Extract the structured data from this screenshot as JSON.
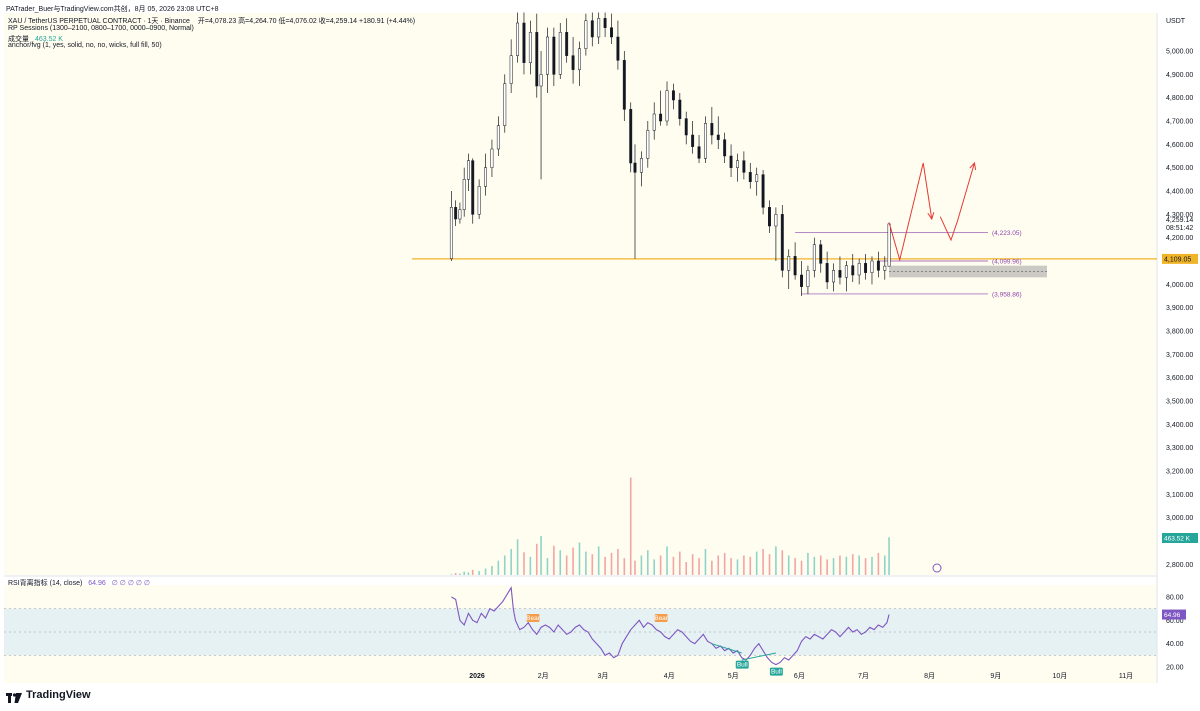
{
  "header": {
    "author_line": "PATrader_Buer与TradingView.com共创，8月 05, 2026 23:08 UTC+8",
    "symbol_line": "XAU / TetherUS PERPETUAL CONTRACT · 1天 · Binance",
    "ohlc": "开=4,078.23 高=4,264.70 低=4,076.02 收=4,259.14 +180.91 (+4.44%)",
    "indicator_sessions": "RP Sessions (1300–2100, 0800–1700, 0000–0900, Normal)",
    "volume_label": "成交量",
    "volume_value": "463.52 K",
    "indicator_fvg": "anchor/fvg (1, yes, solid, no, no, wicks, full fill, 50)",
    "rsi_label": "RSI背离指标 (14, close)",
    "rsi_value": "64.96",
    "rsi_extra": "∅ ∅ ∅ ∅ ∅"
  },
  "brand": {
    "logo_text": "TradingView"
  },
  "colors": {
    "up": "#26a69a",
    "down": "#ef5350",
    "support": "#f0b429",
    "rsi_line": "#7e57c2",
    "projection": "#e53935",
    "level_line": "#8e44ad",
    "chart_bg": "#fffdf0"
  },
  "chart_data": {
    "type": "candlestick",
    "currency": "USDT",
    "price_axis_ticks": [
      "5,000.00",
      "4,900.00",
      "4,800.00",
      "4,700.00",
      "4,600.00",
      "4,500.00",
      "4,400.00",
      "4,300.00",
      "4,200.00",
      "4,000.00",
      "3,900.00",
      "3,800.00",
      "3,700.00",
      "3,600.00",
      "3,500.00",
      "3,400.00",
      "3,300.00",
      "3,200.00",
      "3,100.00",
      "3,000.00",
      "2,800.00"
    ],
    "price_axis_ticks_values": [
      5000,
      4900,
      4800,
      4700,
      4600,
      4500,
      4400,
      4300,
      4200,
      4000,
      3900,
      3800,
      3700,
      3600,
      3500,
      3400,
      3300,
      3200,
      3100,
      3000,
      2800
    ],
    "ylim": [
      2750,
      5165
    ],
    "time_axis": [
      "2026",
      "2月",
      "3月",
      "4月",
      "5月",
      "6月",
      "7月",
      "8月",
      "9月",
      "10月",
      "11月"
    ],
    "time_axis_day": [
      0,
      31,
      59,
      90,
      120,
      151,
      181,
      212,
      243,
      273,
      304
    ],
    "last_price": {
      "value": 4259.14,
      "label": "4,259.14",
      "countdown": "08:51:42"
    },
    "support_level": {
      "value": 4109.05,
      "label": "4,109.05"
    },
    "levels": [
      {
        "value": 4223.05,
        "label": "(4,223.05)"
      },
      {
        "value": 4099.96,
        "label": "(4,099.96)"
      },
      {
        "value": 3958.86,
        "label": "(3,958.86)"
      }
    ],
    "candles_estimated": [
      {
        "day": -12,
        "o": 4110,
        "h": 4400,
        "l": 4100,
        "c": 4330
      },
      {
        "day": -10,
        "o": 4330,
        "h": 4360,
        "l": 4250,
        "c": 4280
      },
      {
        "day": -8,
        "o": 4280,
        "h": 4350,
        "l": 4260,
        "c": 4320
      },
      {
        "day": -6,
        "o": 4320,
        "h": 4500,
        "l": 4290,
        "c": 4450
      },
      {
        "day": -4,
        "o": 4450,
        "h": 4560,
        "l": 4400,
        "c": 4530
      },
      {
        "day": -2,
        "o": 4530,
        "h": 4540,
        "l": 4260,
        "c": 4300
      },
      {
        "day": 1,
        "o": 4300,
        "h": 4450,
        "l": 4280,
        "c": 4420
      },
      {
        "day": 4,
        "o": 4420,
        "h": 4560,
        "l": 4380,
        "c": 4500
      },
      {
        "day": 7,
        "o": 4500,
        "h": 4620,
        "l": 4460,
        "c": 4580
      },
      {
        "day": 10,
        "o": 4580,
        "h": 4720,
        "l": 4550,
        "c": 4680
      },
      {
        "day": 13,
        "o": 4680,
        "h": 4900,
        "l": 4650,
        "c": 4860
      },
      {
        "day": 16,
        "o": 4860,
        "h": 5050,
        "l": 4820,
        "c": 4980
      },
      {
        "day": 19,
        "o": 4980,
        "h": 5165,
        "l": 4950,
        "c": 5120
      },
      {
        "day": 22,
        "o": 5120,
        "h": 5165,
        "l": 4900,
        "c": 4950
      },
      {
        "day": 25,
        "o": 4950,
        "h": 5130,
        "l": 4900,
        "c": 5080
      },
      {
        "day": 28,
        "o": 5080,
        "h": 5160,
        "l": 4800,
        "c": 4850
      },
      {
        "day": 30,
        "o": 4850,
        "h": 5000,
        "l": 4450,
        "c": 4900
      },
      {
        "day": 33,
        "o": 4900,
        "h": 5100,
        "l": 4820,
        "c": 5060
      },
      {
        "day": 36,
        "o": 5060,
        "h": 5100,
        "l": 4850,
        "c": 4900
      },
      {
        "day": 39,
        "o": 4900,
        "h": 5120,
        "l": 4880,
        "c": 5080
      },
      {
        "day": 42,
        "o": 5080,
        "h": 5140,
        "l": 4950,
        "c": 4980
      },
      {
        "day": 45,
        "o": 4980,
        "h": 5060,
        "l": 4860,
        "c": 4920
      },
      {
        "day": 48,
        "o": 4920,
        "h": 5040,
        "l": 4850,
        "c": 5010
      },
      {
        "day": 51,
        "o": 5010,
        "h": 5160,
        "l": 4980,
        "c": 5130
      },
      {
        "day": 54,
        "o": 5130,
        "h": 5165,
        "l": 5020,
        "c": 5060
      },
      {
        "day": 57,
        "o": 5060,
        "h": 5165,
        "l": 5030,
        "c": 5140
      },
      {
        "day": 60,
        "o": 5140,
        "h": 5165,
        "l": 5060,
        "c": 5100
      },
      {
        "day": 63,
        "o": 5100,
        "h": 5160,
        "l": 5030,
        "c": 5060
      },
      {
        "day": 66,
        "o": 5060,
        "h": 5130,
        "l": 4920,
        "c": 4960
      },
      {
        "day": 69,
        "o": 4960,
        "h": 5000,
        "l": 4700,
        "c": 4750
      },
      {
        "day": 72,
        "o": 4750,
        "h": 4780,
        "l": 4480,
        "c": 4520
      },
      {
        "day": 74,
        "o": 4520,
        "h": 4600,
        "l": 4110,
        "c": 4480
      },
      {
        "day": 77,
        "o": 4480,
        "h": 4570,
        "l": 4420,
        "c": 4540
      },
      {
        "day": 80,
        "o": 4540,
        "h": 4700,
        "l": 4500,
        "c": 4660
      },
      {
        "day": 83,
        "o": 4660,
        "h": 4780,
        "l": 4620,
        "c": 4730
      },
      {
        "day": 86,
        "o": 4730,
        "h": 4830,
        "l": 4680,
        "c": 4700
      },
      {
        "day": 89,
        "o": 4700,
        "h": 4870,
        "l": 4680,
        "c": 4830
      },
      {
        "day": 92,
        "o": 4830,
        "h": 4860,
        "l": 4750,
        "c": 4790
      },
      {
        "day": 95,
        "o": 4790,
        "h": 4820,
        "l": 4680,
        "c": 4710
      },
      {
        "day": 98,
        "o": 4710,
        "h": 4740,
        "l": 4600,
        "c": 4640
      },
      {
        "day": 101,
        "o": 4640,
        "h": 4700,
        "l": 4560,
        "c": 4590
      },
      {
        "day": 104,
        "o": 4590,
        "h": 4640,
        "l": 4520,
        "c": 4540
      },
      {
        "day": 107,
        "o": 4540,
        "h": 4720,
        "l": 4520,
        "c": 4690
      },
      {
        "day": 110,
        "o": 4690,
        "h": 4760,
        "l": 4600,
        "c": 4640
      },
      {
        "day": 113,
        "o": 4640,
        "h": 4720,
        "l": 4580,
        "c": 4620
      },
      {
        "day": 116,
        "o": 4620,
        "h": 4650,
        "l": 4520,
        "c": 4550
      },
      {
        "day": 119,
        "o": 4550,
        "h": 4600,
        "l": 4460,
        "c": 4500
      },
      {
        "day": 122,
        "o": 4500,
        "h": 4560,
        "l": 4440,
        "c": 4530
      },
      {
        "day": 125,
        "o": 4530,
        "h": 4570,
        "l": 4450,
        "c": 4480
      },
      {
        "day": 128,
        "o": 4480,
        "h": 4520,
        "l": 4410,
        "c": 4440
      },
      {
        "day": 131,
        "o": 4440,
        "h": 4500,
        "l": 4380,
        "c": 4470
      },
      {
        "day": 134,
        "o": 4470,
        "h": 4490,
        "l": 4300,
        "c": 4330
      },
      {
        "day": 137,
        "o": 4330,
        "h": 4360,
        "l": 4220,
        "c": 4250
      },
      {
        "day": 140,
        "o": 4250,
        "h": 4330,
        "l": 4100,
        "c": 4300
      },
      {
        "day": 143,
        "o": 4300,
        "h": 4340,
        "l": 4030,
        "c": 4060
      },
      {
        "day": 146,
        "o": 4060,
        "h": 4150,
        "l": 3980,
        "c": 4120
      },
      {
        "day": 149,
        "o": 4120,
        "h": 4180,
        "l": 4020,
        "c": 4040
      },
      {
        "day": 152,
        "o": 4040,
        "h": 4100,
        "l": 3950,
        "c": 3990
      },
      {
        "day": 155,
        "o": 3990,
        "h": 4080,
        "l": 3958,
        "c": 4060
      },
      {
        "day": 158,
        "o": 4060,
        "h": 4200,
        "l": 4030,
        "c": 4170
      },
      {
        "day": 161,
        "o": 4170,
        "h": 4190,
        "l": 4050,
        "c": 4090
      },
      {
        "day": 164,
        "o": 4090,
        "h": 4140,
        "l": 3980,
        "c": 4010
      },
      {
        "day": 167,
        "o": 4010,
        "h": 4090,
        "l": 3970,
        "c": 4060
      },
      {
        "day": 170,
        "o": 4060,
        "h": 4120,
        "l": 4000,
        "c": 4030
      },
      {
        "day": 173,
        "o": 4030,
        "h": 4100,
        "l": 3970,
        "c": 4080
      },
      {
        "day": 176,
        "o": 4080,
        "h": 4130,
        "l": 4010,
        "c": 4040
      },
      {
        "day": 179,
        "o": 4040,
        "h": 4110,
        "l": 4000,
        "c": 4090
      },
      {
        "day": 182,
        "o": 4090,
        "h": 4130,
        "l": 4020,
        "c": 4050
      },
      {
        "day": 185,
        "o": 4050,
        "h": 4120,
        "l": 4000,
        "c": 4100
      },
      {
        "day": 188,
        "o": 4100,
        "h": 4140,
        "l": 4030,
        "c": 4060
      },
      {
        "day": 191,
        "o": 4060,
        "h": 4120,
        "l": 4020,
        "c": 4078
      },
      {
        "day": 193,
        "o": 4078,
        "h": 4265,
        "l": 4076,
        "c": 4259
      }
    ],
    "projection_path": [
      {
        "day": 193,
        "price": 4265
      },
      {
        "day": 198,
        "price": 4105
      },
      {
        "day": 209,
        "price": 4520
      },
      {
        "day": 213,
        "price": 4280
      }
    ],
    "projection_path_2": [
      {
        "day": 217,
        "price": 4290
      },
      {
        "day": 222,
        "price": 4190
      },
      {
        "day": 225,
        "price": 4270
      },
      {
        "day": 233,
        "price": 4520
      }
    ],
    "rsi": {
      "ticks": [
        "80.00",
        "60.00",
        "40.00",
        "20.00"
      ],
      "tick_values": [
        80,
        60,
        40,
        20
      ],
      "overbought": 70,
      "oversold": 30,
      "last_value": 64.96,
      "points_estimated": [
        [
          -12,
          80
        ],
        [
          -10,
          78
        ],
        [
          -8,
          60
        ],
        [
          -6,
          56
        ],
        [
          -4,
          66
        ],
        [
          -2,
          60
        ],
        [
          0,
          58
        ],
        [
          2,
          66
        ],
        [
          4,
          62
        ],
        [
          6,
          70
        ],
        [
          8,
          68
        ],
        [
          10,
          72
        ],
        [
          12,
          76
        ],
        [
          14,
          82
        ],
        [
          16,
          88
        ],
        [
          17,
          70
        ],
        [
          18,
          60
        ],
        [
          20,
          52
        ],
        [
          22,
          54
        ],
        [
          24,
          58
        ],
        [
          26,
          52
        ],
        [
          28,
          48
        ],
        [
          30,
          54
        ],
        [
          32,
          56
        ],
        [
          34,
          54
        ],
        [
          36,
          50
        ],
        [
          38,
          56
        ],
        [
          40,
          52
        ],
        [
          42,
          48
        ],
        [
          44,
          50
        ],
        [
          46,
          54
        ],
        [
          48,
          56
        ],
        [
          50,
          52
        ],
        [
          52,
          50
        ],
        [
          54,
          44
        ],
        [
          56,
          40
        ],
        [
          58,
          36
        ],
        [
          60,
          30
        ],
        [
          62,
          32
        ],
        [
          64,
          28
        ],
        [
          66,
          30
        ],
        [
          68,
          40
        ],
        [
          70,
          46
        ],
        [
          72,
          52
        ],
        [
          74,
          56
        ],
        [
          76,
          60
        ],
        [
          78,
          54
        ],
        [
          80,
          58
        ],
        [
          82,
          56
        ],
        [
          84,
          52
        ],
        [
          86,
          50
        ],
        [
          88,
          46
        ],
        [
          90,
          44
        ],
        [
          92,
          48
        ],
        [
          94,
          52
        ],
        [
          96,
          50
        ],
        [
          98,
          46
        ],
        [
          100,
          42
        ],
        [
          102,
          40
        ],
        [
          104,
          44
        ],
        [
          106,
          48
        ],
        [
          108,
          42
        ],
        [
          110,
          40
        ],
        [
          112,
          36
        ],
        [
          114,
          38
        ],
        [
          116,
          34
        ],
        [
          118,
          36
        ],
        [
          120,
          32
        ],
        [
          122,
          34
        ],
        [
          124,
          28
        ],
        [
          126,
          26
        ],
        [
          128,
          30
        ],
        [
          130,
          36
        ],
        [
          132,
          40
        ],
        [
          134,
          34
        ],
        [
          136,
          28
        ],
        [
          138,
          24
        ],
        [
          140,
          22
        ],
        [
          142,
          24
        ],
        [
          144,
          28
        ],
        [
          146,
          26
        ],
        [
          148,
          30
        ],
        [
          150,
          34
        ],
        [
          152,
          42
        ],
        [
          154,
          46
        ],
        [
          156,
          44
        ],
        [
          158,
          48
        ],
        [
          160,
          46
        ],
        [
          162,
          44
        ],
        [
          164,
          48
        ],
        [
          166,
          52
        ],
        [
          168,
          50
        ],
        [
          170,
          46
        ],
        [
          172,
          50
        ],
        [
          174,
          54
        ],
        [
          176,
          50
        ],
        [
          178,
          52
        ],
        [
          180,
          48
        ],
        [
          182,
          50
        ],
        [
          184,
          54
        ],
        [
          186,
          52
        ],
        [
          188,
          56
        ],
        [
          190,
          54
        ],
        [
          192,
          58
        ],
        [
          193,
          65
        ]
      ],
      "signals": [
        {
          "label": "Bear",
          "day": 26,
          "value": 56,
          "kind": "bear"
        },
        {
          "label": "Bear",
          "day": 86,
          "value": 56,
          "kind": "bear"
        },
        {
          "label": "Bull",
          "day": 124,
          "value": 28,
          "kind": "bull"
        },
        {
          "label": "Bull",
          "day": 140,
          "value": 22,
          "kind": "bull"
        }
      ]
    }
  }
}
